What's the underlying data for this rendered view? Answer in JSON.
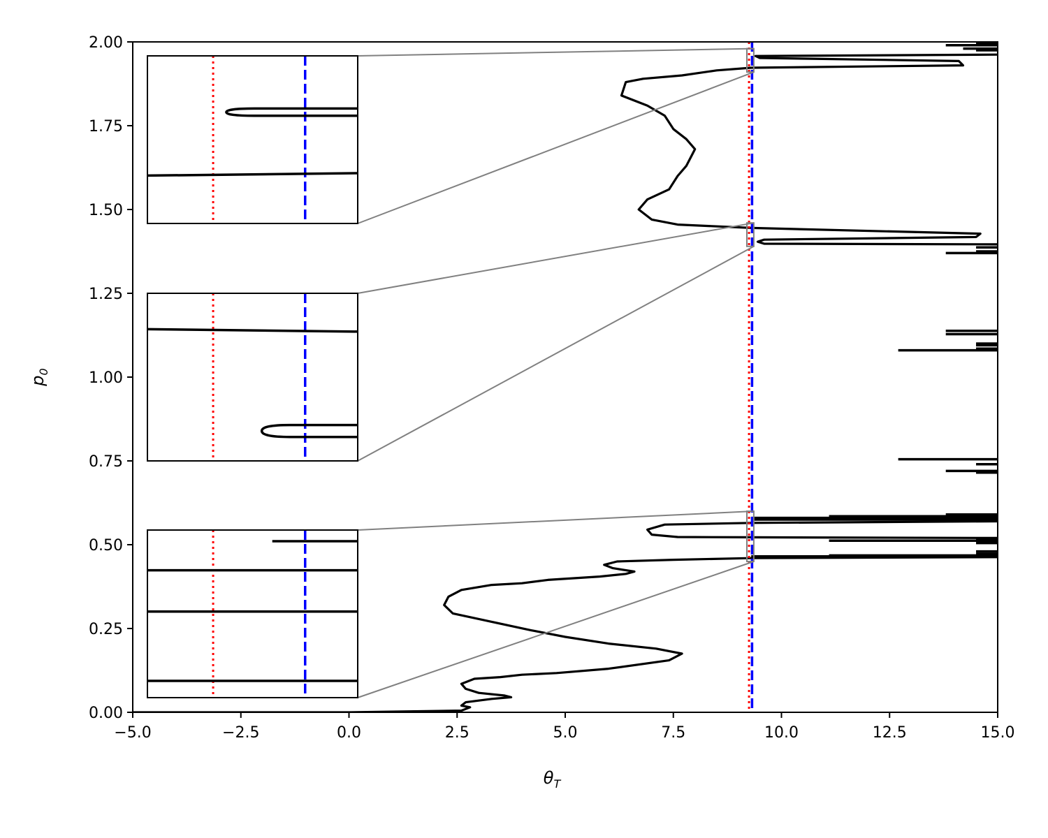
{
  "chart_data": {
    "type": "line",
    "xlabel": "θ",
    "xlabel_sub": "T",
    "ylabel": "p",
    "ylabel_sub": "0",
    "xlim": [
      -5.0,
      15.0
    ],
    "ylim": [
      0.0,
      2.0
    ],
    "xticks": [
      -5.0,
      -2.5,
      0.0,
      2.5,
      5.0,
      7.5,
      10.0,
      12.5,
      15.0
    ],
    "xtick_labels": [
      "−5.0",
      "−2.5",
      "0.0",
      "2.5",
      "5.0",
      "7.5",
      "10.0",
      "12.5",
      "15.0"
    ],
    "yticks": [
      0.0,
      0.25,
      0.5,
      0.75,
      1.0,
      1.25,
      1.5,
      1.75,
      2.0
    ],
    "ytick_labels": [
      "0.00",
      "0.25",
      "0.50",
      "0.75",
      "1.00",
      "1.25",
      "1.50",
      "1.75",
      "2.00"
    ],
    "grid": false,
    "colors": {
      "curve": "#000000",
      "red_line": "#ff0000",
      "blue_line": "#0000ff",
      "connector": "#808080"
    },
    "vertical_lines": [
      {
        "x": 9.25,
        "color": "#ff0000",
        "style": "dotted"
      },
      {
        "x": 9.32,
        "color": "#0000ff",
        "style": "dashed"
      }
    ],
    "series": [
      {
        "color": "#000000",
        "points": [
          [
            -5.0,
            0.0
          ],
          [
            0.0,
            0.0
          ],
          [
            2.6,
            0.005
          ],
          [
            2.8,
            0.015
          ],
          [
            2.6,
            0.02
          ],
          [
            2.7,
            0.03
          ],
          [
            3.3,
            0.04
          ],
          [
            3.75,
            0.045
          ],
          [
            3.6,
            0.05
          ],
          [
            3.0,
            0.058
          ],
          [
            2.7,
            0.07
          ],
          [
            2.6,
            0.085
          ],
          [
            2.9,
            0.1
          ],
          [
            3.5,
            0.105
          ],
          [
            4.0,
            0.112
          ],
          [
            4.8,
            0.117
          ],
          [
            6.0,
            0.13
          ],
          [
            7.4,
            0.155
          ],
          [
            7.7,
            0.175
          ],
          [
            7.1,
            0.19
          ],
          [
            6.0,
            0.205
          ],
          [
            5.0,
            0.225
          ],
          [
            4.2,
            0.245
          ],
          [
            3.3,
            0.27
          ],
          [
            2.4,
            0.295
          ],
          [
            2.2,
            0.32
          ],
          [
            2.3,
            0.345
          ],
          [
            2.6,
            0.365
          ],
          [
            3.3,
            0.38
          ],
          [
            4.0,
            0.385
          ],
          [
            4.6,
            0.395
          ],
          [
            5.8,
            0.405
          ],
          [
            6.4,
            0.413
          ],
          [
            6.6,
            0.42
          ],
          [
            6.1,
            0.43
          ],
          [
            5.9,
            0.44
          ],
          [
            6.2,
            0.45
          ],
          [
            7.5,
            0.455
          ],
          [
            9.3,
            0.46
          ],
          [
            15.0,
            0.463
          ]
        ]
      },
      {
        "color": "#000000",
        "points": [
          [
            15.0,
            0.52
          ],
          [
            9.3,
            0.522
          ],
          [
            7.6,
            0.523
          ],
          [
            7.0,
            0.53
          ],
          [
            6.9,
            0.545
          ],
          [
            7.3,
            0.56
          ],
          [
            9.3,
            0.565
          ],
          [
            15.0,
            0.57
          ]
        ]
      },
      {
        "color": "#000000",
        "points": [
          [
            15.0,
            1.396
          ],
          [
            9.6,
            1.398
          ],
          [
            9.45,
            1.404
          ],
          [
            9.6,
            1.41
          ],
          [
            14.5,
            1.418
          ],
          [
            14.6,
            1.428
          ],
          [
            9.3,
            1.445
          ],
          [
            7.6,
            1.455
          ],
          [
            7.0,
            1.47
          ],
          [
            6.7,
            1.5
          ],
          [
            6.9,
            1.53
          ],
          [
            7.4,
            1.56
          ],
          [
            7.6,
            1.6
          ],
          [
            7.8,
            1.63
          ],
          [
            8.0,
            1.68
          ],
          [
            7.8,
            1.71
          ],
          [
            7.5,
            1.74
          ],
          [
            7.3,
            1.78
          ],
          [
            6.9,
            1.81
          ],
          [
            6.3,
            1.84
          ],
          [
            6.4,
            1.88
          ],
          [
            6.8,
            1.89
          ],
          [
            7.7,
            1.9
          ],
          [
            8.5,
            1.915
          ],
          [
            9.3,
            1.923
          ],
          [
            14.2,
            1.93
          ],
          [
            14.1,
            1.943
          ],
          [
            9.5,
            1.952
          ],
          [
            9.4,
            1.958
          ],
          [
            15.0,
            1.962
          ]
        ]
      }
    ],
    "segments": [
      {
        "x1": 9.3,
        "x2": 15.0,
        "y": 0.465
      },
      {
        "x1": 11.1,
        "x2": 15.0,
        "y": 0.468
      },
      {
        "x1": 14.5,
        "x2": 15.0,
        "y": 0.473
      },
      {
        "x1": 14.5,
        "x2": 15.0,
        "y": 0.48
      },
      {
        "x1": 11.1,
        "x2": 15.0,
        "y": 0.512
      },
      {
        "x1": 14.5,
        "x2": 15.0,
        "y": 0.515
      },
      {
        "x1": 14.5,
        "x2": 15.0,
        "y": 0.505
      },
      {
        "x1": 9.3,
        "x2": 15.0,
        "y": 0.575
      },
      {
        "x1": 9.3,
        "x2": 15.0,
        "y": 0.58
      },
      {
        "x1": 11.1,
        "x2": 15.0,
        "y": 0.585
      },
      {
        "x1": 13.8,
        "x2": 15.0,
        "y": 0.59
      },
      {
        "x1": 14.5,
        "x2": 15.0,
        "y": 0.57
      },
      {
        "x1": 14.5,
        "x2": 15.0,
        "y": 0.715
      },
      {
        "x1": 13.8,
        "x2": 15.0,
        "y": 0.72
      },
      {
        "x1": 14.5,
        "x2": 15.0,
        "y": 0.74
      },
      {
        "x1": 12.7,
        "x2": 15.0,
        "y": 0.755
      },
      {
        "x1": 12.7,
        "x2": 15.0,
        "y": 1.08
      },
      {
        "x1": 14.5,
        "x2": 15.0,
        "y": 1.085
      },
      {
        "x1": 14.5,
        "x2": 15.0,
        "y": 1.095
      },
      {
        "x1": 14.5,
        "x2": 15.0,
        "y": 1.1
      },
      {
        "x1": 13.8,
        "x2": 15.0,
        "y": 1.128
      },
      {
        "x1": 13.8,
        "x2": 15.0,
        "y": 1.138
      },
      {
        "x1": 13.8,
        "x2": 15.0,
        "y": 1.37
      },
      {
        "x1": 14.5,
        "x2": 15.0,
        "y": 1.375
      },
      {
        "x1": 14.5,
        "x2": 15.0,
        "y": 1.387
      },
      {
        "x1": 13.8,
        "x2": 15.0,
        "y": 1.99
      },
      {
        "x1": 14.5,
        "x2": 15.0,
        "y": 1.995
      },
      {
        "x1": 14.2,
        "x2": 15.0,
        "y": 1.98
      },
      {
        "x1": 14.5,
        "x2": 15.0,
        "y": 1.975
      }
    ],
    "insets": [
      {
        "source": {
          "x": [
            9.2,
            9.36
          ],
          "y": [
            1.91,
            1.98
          ]
        },
        "red_line_x": 9.25,
        "blue_line_x": 9.32,
        "curves": [
          {
            "y_left": 1.93,
            "y_right": 1.931,
            "x_left": null
          },
          {
            "y_left": 1.956,
            "y_right": 1.957,
            "x_left": 9.26,
            "y_right_upper": 1.958,
            "y_right_lower": 1.955
          }
        ]
      },
      {
        "source": {
          "x": [
            9.2,
            9.36
          ],
          "y": [
            1.39,
            1.46
          ]
        },
        "red_line_x": 9.25,
        "blue_line_x": 9.32,
        "curves": [
          {
            "y_left": 1.445,
            "y_right": 1.444,
            "x_left": null
          },
          {
            "y_left": 1.402,
            "y_right": 1.402,
            "x_left": 9.287,
            "y_right_upper": 1.405,
            "y_right_lower": 1.4
          }
        ]
      },
      {
        "source": {
          "x": [
            9.2,
            9.36
          ],
          "y": [
            0.45,
            0.6
          ]
        },
        "red_line_x": 9.25,
        "blue_line_x": 9.32,
        "curves": [
          {
            "y_left": 0.465,
            "y_right": 0.465,
            "x_left": null
          },
          {
            "y_left": 0.527,
            "y_right": 0.527,
            "x_left": null
          },
          {
            "y_left": 0.564,
            "y_right": 0.564,
            "x_left": null
          },
          {
            "y_left": 0.59,
            "y_right": 0.59,
            "x_left": 9.295,
            "y_right_upper": 0.59,
            "y_right_lower": 0.59
          }
        ]
      }
    ]
  }
}
